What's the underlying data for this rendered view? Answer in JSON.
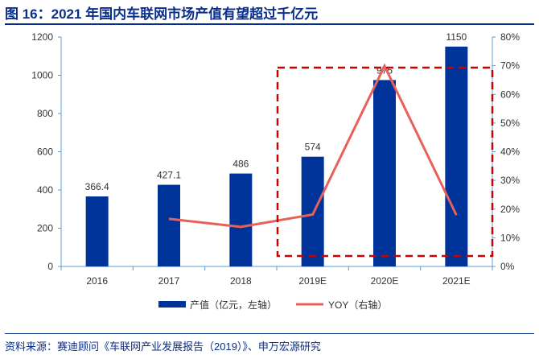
{
  "title": "图 16：2021 年国内车联网市场产值有望超过千亿元",
  "source": "资料来源：赛迪顾问《车联网产业发展报告（2019）》、申万宏源研究",
  "chart_data": {
    "type": "bar+line",
    "categories": [
      "2016",
      "2017",
      "2018",
      "2019E",
      "2020E",
      "2021E"
    ],
    "series": [
      {
        "name": "产值（亿元，左轴）",
        "type": "bar",
        "axis": "left",
        "values": [
          366.4,
          427.1,
          486,
          574,
          975,
          1150
        ],
        "labels": [
          "366.4",
          "427.1",
          "486",
          "574",
          "975",
          "1150"
        ],
        "color": "#003399"
      },
      {
        "name": "YOY（右轴）",
        "type": "line",
        "axis": "right",
        "values": [
          null,
          16.6,
          13.8,
          18.1,
          69.9,
          17.9
        ],
        "color": "#e8605a"
      }
    ],
    "left_axis": {
      "ylim": [
        0,
        1200
      ],
      "ticks": [
        0,
        200,
        400,
        600,
        800,
        1000,
        1200
      ]
    },
    "right_axis": {
      "ylim": [
        0,
        80
      ],
      "ticks": [
        "0%",
        "10%",
        "20%",
        "30%",
        "40%",
        "50%",
        "60%",
        "70%",
        "80%"
      ]
    },
    "legend": "bottom",
    "grid": false,
    "annotation": "red dashed box highlighting 2019E–2021E",
    "annotation_color": "#cc0000",
    "axis_color": "#5b9bd5"
  }
}
